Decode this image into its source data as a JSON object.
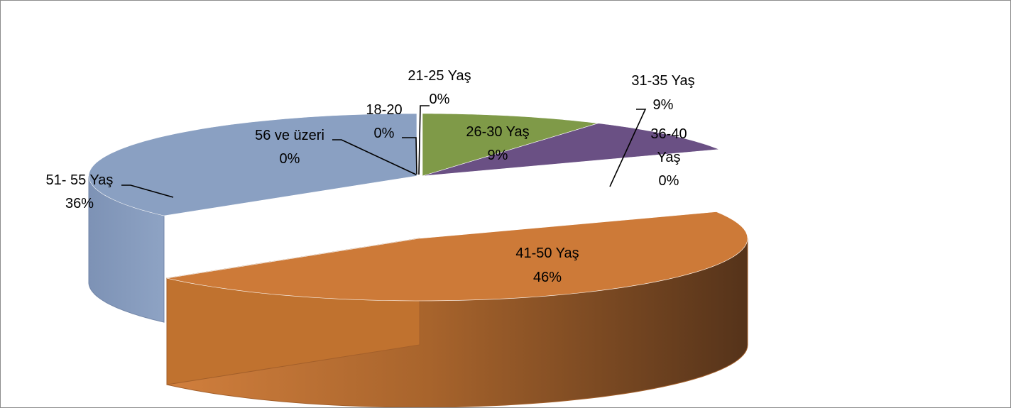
{
  "chart_data": {
    "type": "pie",
    "title": "",
    "slices": [
      {
        "category": "18-20",
        "value": 0,
        "pct_label": "0%"
      },
      {
        "category": "21-25 Yaş",
        "value": 0,
        "pct_label": "0%"
      },
      {
        "category": "26-30 Yaş",
        "value": 9,
        "pct_label": "9%"
      },
      {
        "category": "31-35 Yaş",
        "value": 9,
        "pct_label": "9%"
      },
      {
        "category": "36-40 Yaş",
        "value": 0,
        "pct_label": "0%"
      },
      {
        "category": "41-50 Yaş",
        "value": 46,
        "pct_label": "46%"
      },
      {
        "category": "51- 55 Yaş",
        "value": 36,
        "pct_label": "36%"
      },
      {
        "category": "56 ve üzeri",
        "value": 0,
        "pct_label": "0%"
      }
    ],
    "colors": {
      "26-30 Yaş": "#7f9a48",
      "31-35 Yaş": "#6a5084",
      "41-50 Yaş": "#cd7a38",
      "51- 55 Yaş": "#8aa0c2"
    },
    "style": "3d-exploded-perspective",
    "legend": "none"
  }
}
